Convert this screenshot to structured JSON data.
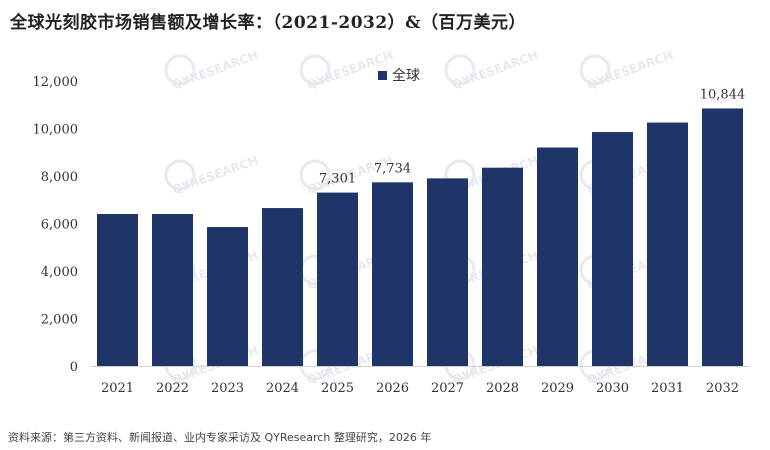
{
  "title": "全球光刻胶市场销售额及增长率：（2021-2032）&（百万美元）",
  "source": "资料来源：第三方资料、新闻报道、业内专家采访及 QYResearch 整理研究，2026 年",
  "watermark": "QYRESEARCH",
  "colors": {
    "bar": "#1f3468",
    "axis": "#333333",
    "watermark": "#e6e9ef"
  },
  "chart_data": {
    "type": "bar",
    "title": "全球光刻胶市场销售额及增长率：（2021-2032）&（百万美元）",
    "xlabel": "",
    "ylabel": "",
    "ylim": [
      0,
      12000
    ],
    "yticks": [
      0,
      2000,
      4000,
      6000,
      8000,
      10000,
      12000
    ],
    "ytick_labels": [
      "0",
      "2,000",
      "4,000",
      "6,000",
      "8,000",
      "10,000",
      "12,000"
    ],
    "grid": false,
    "legend_position": "top",
    "categories": [
      "2021",
      "2022",
      "2023",
      "2024",
      "2025",
      "2026",
      "2027",
      "2028",
      "2029",
      "2030",
      "2031",
      "2032"
    ],
    "series": [
      {
        "name": "全球",
        "values": [
          6400,
          6400,
          5850,
          6650,
          7301,
          7734,
          7900,
          8350,
          9200,
          9850,
          10250,
          10844
        ],
        "data_labels": [
          "",
          "",
          "",
          "",
          "7,301",
          "7,734",
          "",
          "",
          "",
          "",
          "",
          "10,844"
        ]
      }
    ]
  }
}
